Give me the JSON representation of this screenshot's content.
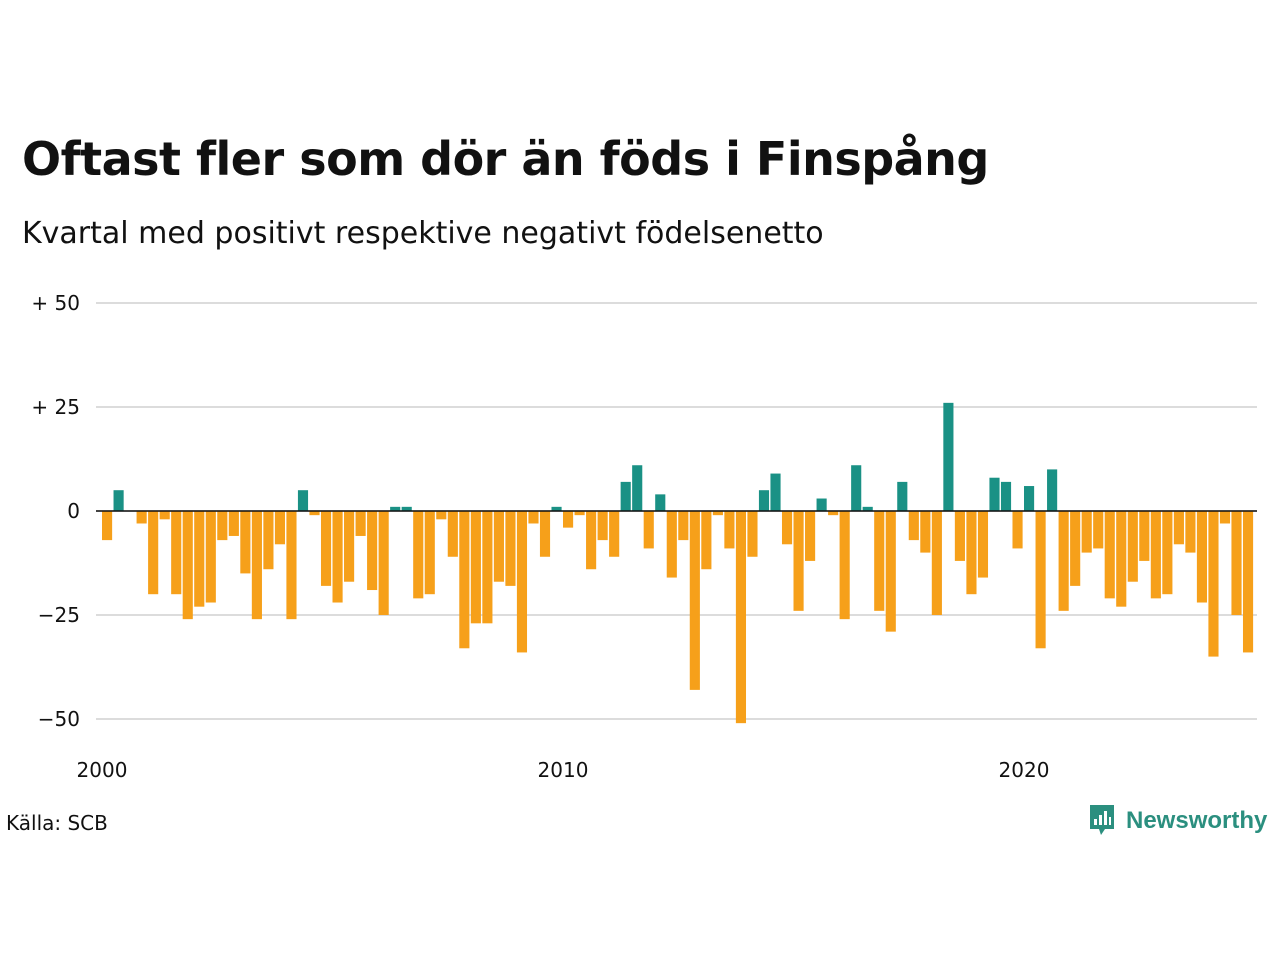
{
  "header": {
    "title": "Oftast fler som dör än föds i Finspång",
    "subtitle": "Kvartal med positivt respektive negativt födelsenetto"
  },
  "footer": {
    "source": "Källa: SCB",
    "brand": "Newsworthy",
    "brand_icon": "bar-chart-speech-icon"
  },
  "colors": {
    "positive": "#1a9185",
    "negative": "#f6a01a",
    "grid": "#dcdcdc",
    "zero_line": "#111111",
    "brand": "#2b8f7f"
  },
  "chart_data": {
    "type": "bar",
    "title": "Oftast fler som dör än föds i Finspång",
    "subtitle": "Kvartal med positivt respektive negativt födelsenetto",
    "xlabel": "",
    "ylabel": "",
    "x_start": "2000 Q1",
    "x_ticks": [
      {
        "label": "2000",
        "value": 2000
      },
      {
        "label": "2010",
        "value": 2010
      },
      {
        "label": "2020",
        "value": 2020
      }
    ],
    "y_ticks": [
      {
        "label": "+ 50",
        "value": 50
      },
      {
        "label": "+ 25",
        "value": 25
      },
      {
        "label": "0",
        "value": 0
      },
      {
        "label": "−25",
        "value": -25
      },
      {
        "label": "−50",
        "value": -50
      }
    ],
    "ylim": [
      -50,
      50
    ],
    "grid": true,
    "legend": "none",
    "values": [
      -7,
      5,
      0,
      -3,
      -20,
      -2,
      -20,
      -26,
      -23,
      -22,
      -7,
      -6,
      -15,
      -26,
      -14,
      -8,
      -26,
      5,
      -1,
      -18,
      -22,
      -17,
      -6,
      -19,
      -25,
      1,
      1,
      -21,
      -20,
      -2,
      -11,
      -33,
      -27,
      -27,
      -17,
      -18,
      -34,
      -3,
      -11,
      1,
      -4,
      -1,
      -14,
      -7,
      -11,
      7,
      11,
      -9,
      4,
      -16,
      -7,
      -43,
      -14,
      -1,
      -9,
      -51,
      -11,
      5,
      9,
      -8,
      -24,
      -12,
      3,
      -1,
      -26,
      11,
      1,
      -24,
      -29,
      7,
      -7,
      -10,
      -25,
      26,
      -12,
      -20,
      -16,
      8,
      7,
      -9,
      6,
      -33,
      10,
      -24,
      -18,
      -10,
      -9,
      -21,
      -23,
      -17,
      -12,
      -21,
      -20,
      -8,
      -10,
      -22,
      -35,
      -3,
      -25,
      -34
    ]
  }
}
